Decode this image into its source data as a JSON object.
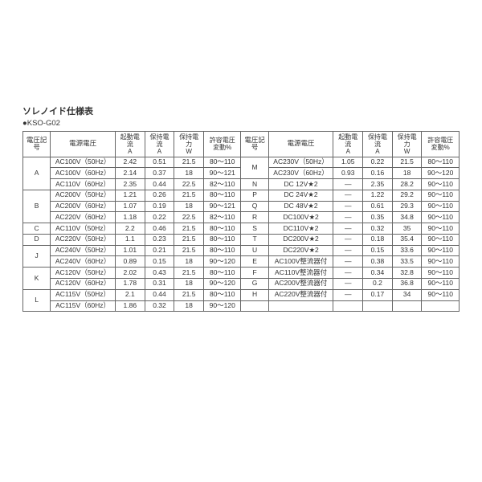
{
  "title": "ソレノイド仕様表",
  "subtitle": "●KSO-G02",
  "headers": {
    "sym": "電圧記号",
    "volt": "電源電圧",
    "start": "起動電流",
    "hold": "保持電流",
    "power": "保持電力",
    "tol": "許容電圧",
    "unitA": "A",
    "unitW": "W",
    "tol2": "変動%"
  },
  "left": [
    {
      "sym": "A",
      "rows": [
        [
          "AC100V（50Hz）",
          "2.42",
          "0.51",
          "21.5",
          "80～110"
        ],
        [
          "AC100V（60Hz）",
          "2.14",
          "0.37",
          "18",
          "90～121"
        ],
        [
          "AC110V（60Hz）",
          "2.35",
          "0.44",
          "22.5",
          "82～110"
        ]
      ]
    },
    {
      "sym": "B",
      "rows": [
        [
          "AC200V（50Hz）",
          "1.21",
          "0.26",
          "21.5",
          "80～110"
        ],
        [
          "AC200V（60Hz）",
          "1.07",
          "0.19",
          "18",
          "90～121"
        ],
        [
          "AC220V（60Hz）",
          "1.18",
          "0.22",
          "22.5",
          "82～110"
        ]
      ]
    },
    {
      "sym": "C",
      "rows": [
        [
          "AC110V（50Hz）",
          "2.2",
          "0.46",
          "21.5",
          "80～110"
        ]
      ]
    },
    {
      "sym": "D",
      "rows": [
        [
          "AC220V（50Hz）",
          "1.1",
          "0.23",
          "21.5",
          "80～110"
        ]
      ]
    },
    {
      "sym": "J",
      "rows": [
        [
          "AC240V（50Hz）",
          "1.01",
          "0.21",
          "21.5",
          "80～110"
        ],
        [
          "AC240V（60Hz）",
          "0.89",
          "0.15",
          "18",
          "90～120"
        ]
      ]
    },
    {
      "sym": "K",
      "rows": [
        [
          "AC120V（50Hz）",
          "2.02",
          "0.43",
          "21.5",
          "80～110"
        ],
        [
          "AC120V（60Hz）",
          "1.78",
          "0.31",
          "18",
          "90～120"
        ]
      ]
    },
    {
      "sym": "L",
      "rows": [
        [
          "AC115V（50Hz）",
          "2.1",
          "0.44",
          "21.5",
          "80～110"
        ],
        [
          "AC115V（60Hz）",
          "1.86",
          "0.32",
          "18",
          "90～120"
        ]
      ]
    }
  ],
  "right": [
    {
      "sym": "M",
      "rows": [
        [
          "AC230V（50Hz）",
          "1.05",
          "0.22",
          "21.5",
          "80～110"
        ],
        [
          "AC230V（60Hz）",
          "0.93",
          "0.16",
          "18",
          "90～120"
        ]
      ]
    },
    {
      "sym": "N",
      "rows": [
        [
          "DC 12V★2",
          "—",
          "2.35",
          "28.2",
          "90～110"
        ]
      ]
    },
    {
      "sym": "P",
      "rows": [
        [
          "DC 24V★2",
          "—",
          "1.22",
          "29.2",
          "90～110"
        ]
      ]
    },
    {
      "sym": "Q",
      "rows": [
        [
          "DC 48V★2",
          "—",
          "0.61",
          "29.3",
          "90～110"
        ]
      ]
    },
    {
      "sym": "R",
      "rows": [
        [
          "DC100V★2",
          "—",
          "0.35",
          "34.8",
          "90～110"
        ]
      ]
    },
    {
      "sym": "S",
      "rows": [
        [
          "DC110V★2",
          "—",
          "0.32",
          "35",
          "90～110"
        ]
      ]
    },
    {
      "sym": "T",
      "rows": [
        [
          "DC200V★2",
          "—",
          "0.18",
          "35.4",
          "90～110"
        ]
      ]
    },
    {
      "sym": "U",
      "rows": [
        [
          "DC220V★2",
          "—",
          "0.15",
          "33.6",
          "90～110"
        ]
      ]
    },
    {
      "sym": "E",
      "rows": [
        [
          "AC100V整流器付",
          "—",
          "0.38",
          "33.5",
          "90～110"
        ]
      ]
    },
    {
      "sym": "F",
      "rows": [
        [
          "AC110V整流器付",
          "—",
          "0.34",
          "32.8",
          "90～110"
        ]
      ]
    },
    {
      "sym": "G",
      "rows": [
        [
          "AC200V整流器付",
          "—",
          "0.2",
          "36.8",
          "90～110"
        ]
      ]
    },
    {
      "sym": "H",
      "rows": [
        [
          "AC220V整流器付",
          "—",
          "0.17",
          "34",
          "90～110"
        ]
      ]
    }
  ]
}
